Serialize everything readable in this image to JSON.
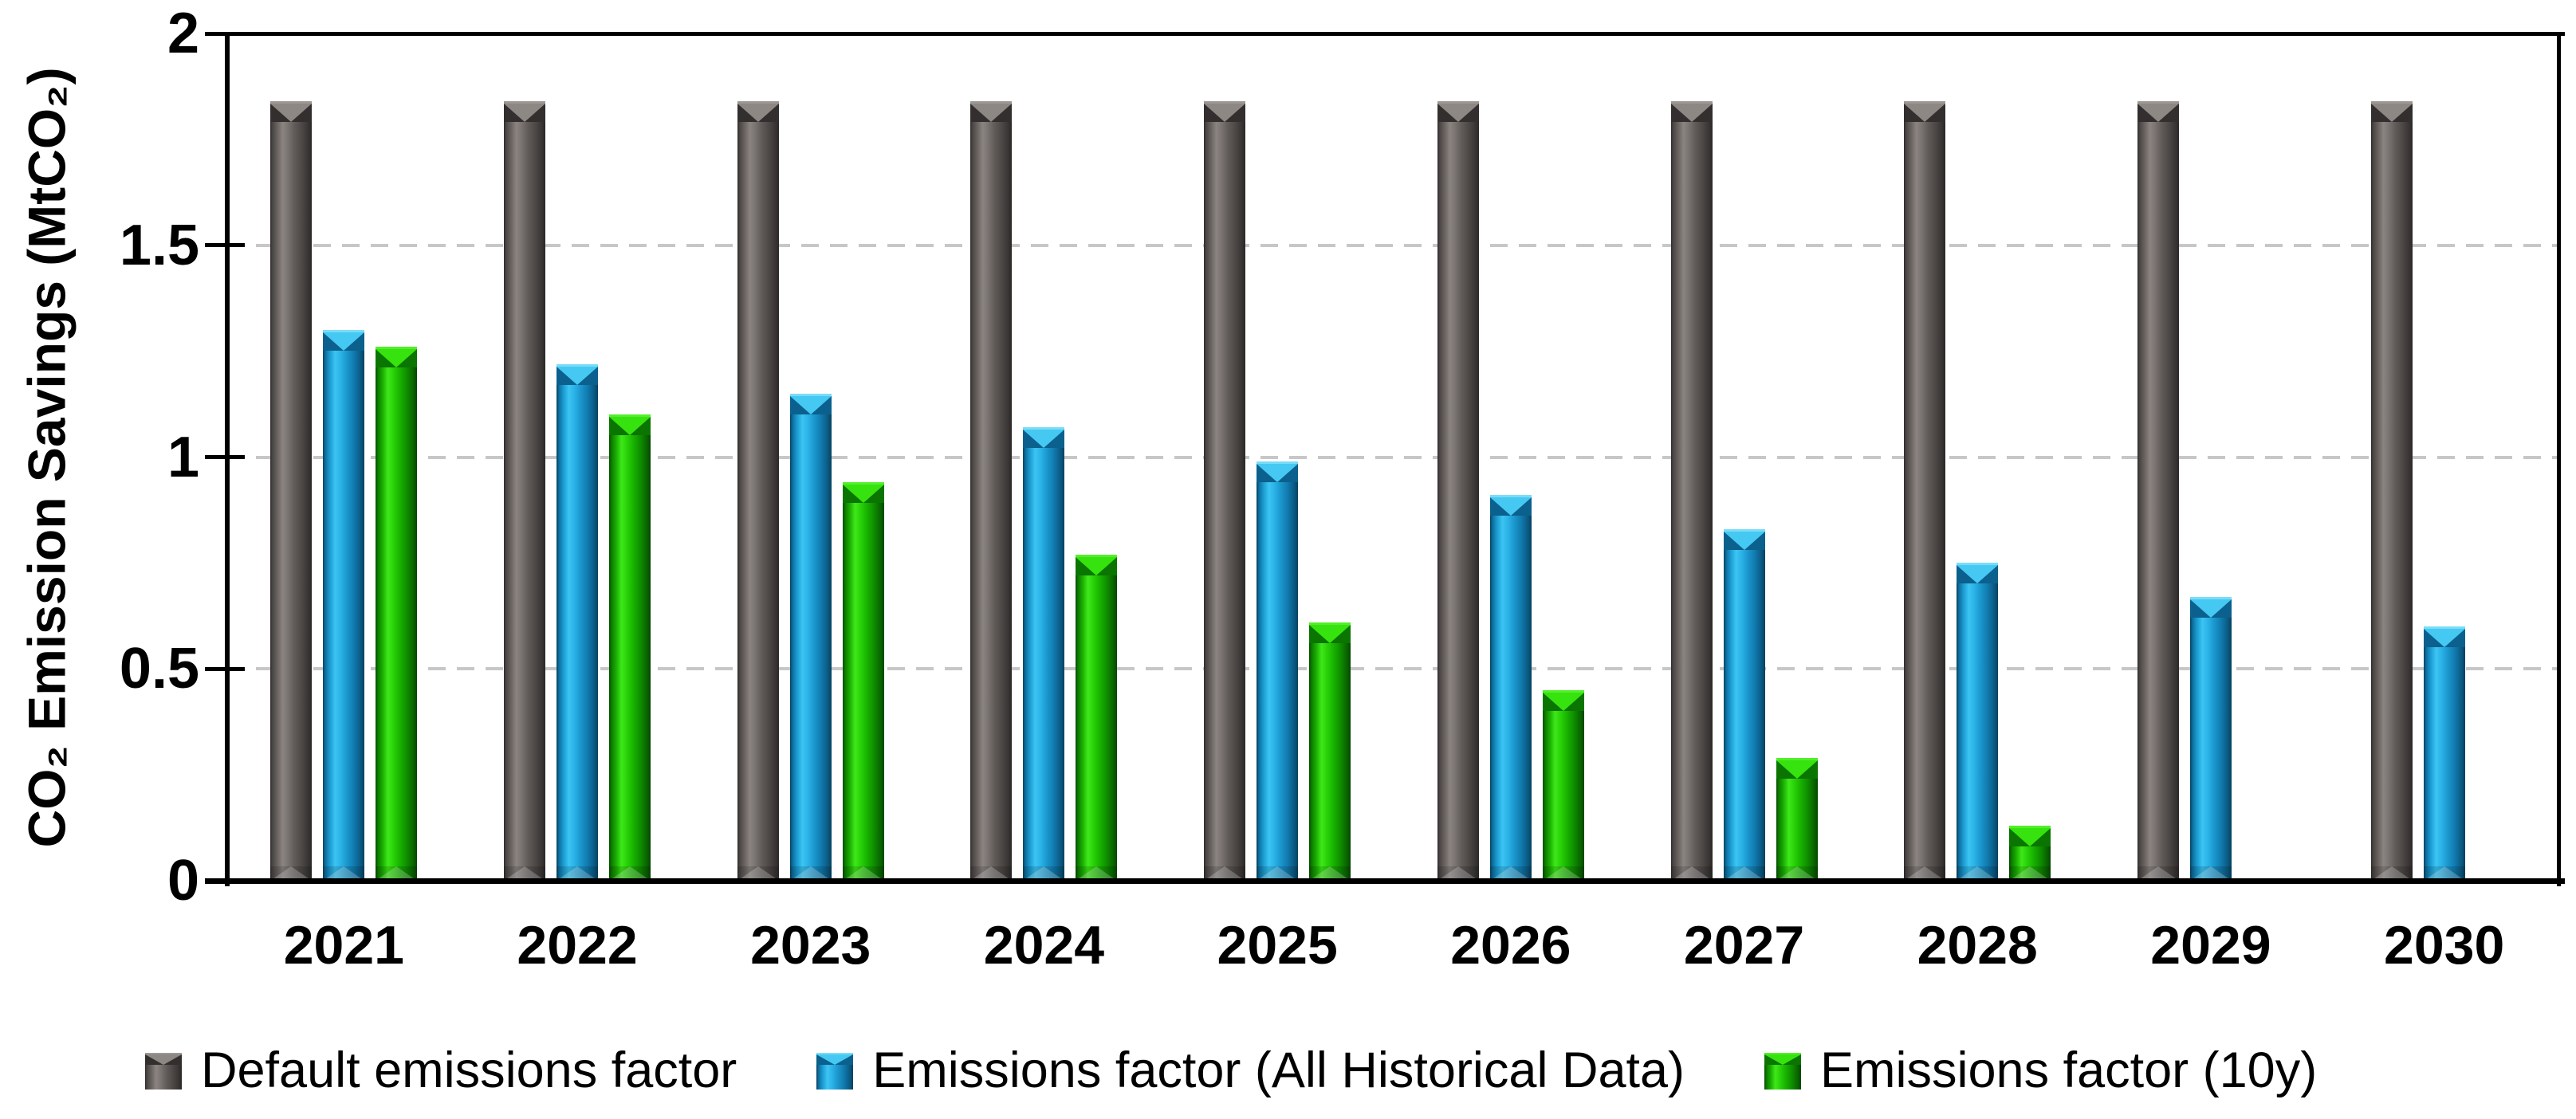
{
  "chart_data": {
    "type": "bar",
    "title": "",
    "ylabel": "CO₂ Emission Savings (MtCO₂)",
    "xlabel": "",
    "ylim": [
      0,
      2
    ],
    "yticks": [
      "0",
      "0.5",
      "1",
      "1.5",
      "2"
    ],
    "grid": "horizontal dashed gridlines at 0.5 steps, solid black frame",
    "legend_position": "bottom",
    "categories": [
      "2021",
      "2022",
      "2023",
      "2024",
      "2025",
      "2026",
      "2027",
      "2028",
      "2029",
      "2030"
    ],
    "series": [
      {
        "name": "Default emissions factor",
        "color": "#575150",
        "values": [
          1.84,
          1.84,
          1.84,
          1.84,
          1.84,
          1.84,
          1.84,
          1.84,
          1.84,
          1.84
        ]
      },
      {
        "name": "Emissions factor (All Historical Data)",
        "color": "#1f9dd9",
        "values": [
          1.3,
          1.22,
          1.15,
          1.07,
          0.99,
          0.91,
          0.83,
          0.75,
          0.67,
          0.6
        ]
      },
      {
        "name": "Emissions factor (10y)",
        "color": "#1cbf00",
        "values": [
          1.26,
          1.1,
          0.94,
          0.77,
          0.61,
          0.45,
          0.29,
          0.13,
          null,
          null
        ]
      }
    ]
  }
}
